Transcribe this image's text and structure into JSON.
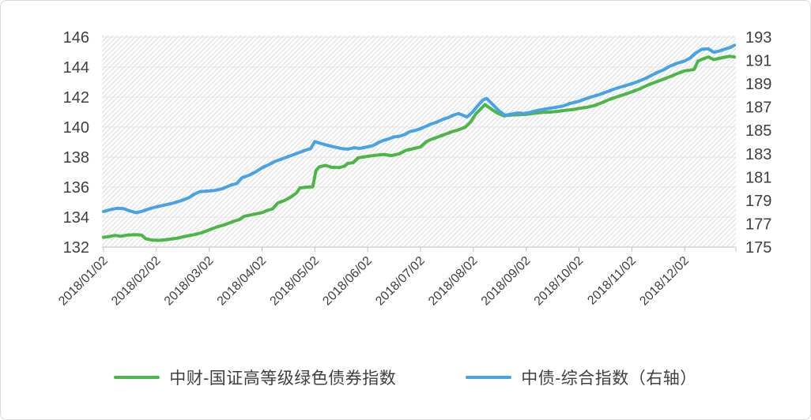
{
  "chart_data": {
    "type": "line",
    "title": "",
    "legend_position": "bottom",
    "grid": "horizontal",
    "plot_background": "diagonal-hatch",
    "x_unit": "month_index (0 = 2018/01/02 tick, 11 = 2018/12/02 tick, daily data through end of Dec 2018)",
    "x_tick_labels": [
      "2018/01/02",
      "2018/02/02",
      "2018/03/02",
      "2018/04/02",
      "2018/05/02",
      "2018/06/02",
      "2018/07/02",
      "2018/08/02",
      "2018/09/02",
      "2018/10/02",
      "2018/11/02",
      "2018/12/02"
    ],
    "left_axis": {
      "min": 132,
      "max": 146,
      "ticks": [
        146,
        144,
        142,
        140,
        138,
        136,
        134,
        132
      ]
    },
    "right_axis": {
      "min": 175,
      "max": 193,
      "ticks": [
        193,
        191,
        189,
        187,
        185,
        183,
        181,
        179,
        177,
        175
      ]
    },
    "series": [
      {
        "name": "中财-国证高等级绿色债券指数",
        "axis": "left",
        "color": "#4cb648",
        "points": [
          [
            0.0,
            132.65
          ],
          [
            0.1,
            132.7
          ],
          [
            0.22,
            132.78
          ],
          [
            0.32,
            132.72
          ],
          [
            0.45,
            132.8
          ],
          [
            0.6,
            132.83
          ],
          [
            0.72,
            132.8
          ],
          [
            0.8,
            132.55
          ],
          [
            0.92,
            132.47
          ],
          [
            1.05,
            132.45
          ],
          [
            1.2,
            132.5
          ],
          [
            1.4,
            132.6
          ],
          [
            1.55,
            132.72
          ],
          [
            1.7,
            132.82
          ],
          [
            1.85,
            132.95
          ],
          [
            2.0,
            133.15
          ],
          [
            2.15,
            133.35
          ],
          [
            2.3,
            133.5
          ],
          [
            2.45,
            133.7
          ],
          [
            2.58,
            133.85
          ],
          [
            2.66,
            134.05
          ],
          [
            2.8,
            134.15
          ],
          [
            3.0,
            134.3
          ],
          [
            3.1,
            134.45
          ],
          [
            3.2,
            134.55
          ],
          [
            3.3,
            134.95
          ],
          [
            3.42,
            135.1
          ],
          [
            3.55,
            135.35
          ],
          [
            3.65,
            135.6
          ],
          [
            3.72,
            135.95
          ],
          [
            3.85,
            136.0
          ],
          [
            3.96,
            136.02
          ],
          [
            4.02,
            137.1
          ],
          [
            4.08,
            137.35
          ],
          [
            4.2,
            137.45
          ],
          [
            4.32,
            137.32
          ],
          [
            4.45,
            137.3
          ],
          [
            4.55,
            137.38
          ],
          [
            4.62,
            137.58
          ],
          [
            4.72,
            137.62
          ],
          [
            4.82,
            137.95
          ],
          [
            5.0,
            138.05
          ],
          [
            5.15,
            138.12
          ],
          [
            5.3,
            138.18
          ],
          [
            5.45,
            138.1
          ],
          [
            5.6,
            138.22
          ],
          [
            5.72,
            138.45
          ],
          [
            5.85,
            138.55
          ],
          [
            6.0,
            138.68
          ],
          [
            6.1,
            139.0
          ],
          [
            6.18,
            139.15
          ],
          [
            6.3,
            139.3
          ],
          [
            6.45,
            139.5
          ],
          [
            6.6,
            139.7
          ],
          [
            6.72,
            139.82
          ],
          [
            6.85,
            140.0
          ],
          [
            6.95,
            140.35
          ],
          [
            7.05,
            140.9
          ],
          [
            7.15,
            141.25
          ],
          [
            7.22,
            141.5
          ],
          [
            7.32,
            141.25
          ],
          [
            7.45,
            140.95
          ],
          [
            7.58,
            140.75
          ],
          [
            7.7,
            140.8
          ],
          [
            7.85,
            140.82
          ],
          [
            8.0,
            140.85
          ],
          [
            8.15,
            140.92
          ],
          [
            8.3,
            140.98
          ],
          [
            8.45,
            141.0
          ],
          [
            8.6,
            141.05
          ],
          [
            8.75,
            141.12
          ],
          [
            8.9,
            141.18
          ],
          [
            9.0,
            141.25
          ],
          [
            9.15,
            141.32
          ],
          [
            9.3,
            141.45
          ],
          [
            9.45,
            141.65
          ],
          [
            9.6,
            141.88
          ],
          [
            9.75,
            142.05
          ],
          [
            9.88,
            142.2
          ],
          [
            10.0,
            142.35
          ],
          [
            10.15,
            142.55
          ],
          [
            10.3,
            142.8
          ],
          [
            10.45,
            143.0
          ],
          [
            10.6,
            143.2
          ],
          [
            10.75,
            143.4
          ],
          [
            10.88,
            143.6
          ],
          [
            11.0,
            143.75
          ],
          [
            11.1,
            143.8
          ],
          [
            11.18,
            143.85
          ],
          [
            11.25,
            144.4
          ],
          [
            11.35,
            144.55
          ],
          [
            11.45,
            144.68
          ],
          [
            11.55,
            144.5
          ],
          [
            11.65,
            144.58
          ],
          [
            11.75,
            144.65
          ],
          [
            11.85,
            144.72
          ],
          [
            11.94,
            144.68
          ]
        ]
      },
      {
        "name": "中债-综合指数（右轴）",
        "axis": "right",
        "color": "#47a3e3",
        "points": [
          [
            0.0,
            178.05
          ],
          [
            0.12,
            178.2
          ],
          [
            0.25,
            178.32
          ],
          [
            0.38,
            178.3
          ],
          [
            0.5,
            178.1
          ],
          [
            0.62,
            177.95
          ],
          [
            0.75,
            178.1
          ],
          [
            0.88,
            178.3
          ],
          [
            1.0,
            178.45
          ],
          [
            1.15,
            178.6
          ],
          [
            1.3,
            178.75
          ],
          [
            1.45,
            178.95
          ],
          [
            1.6,
            179.2
          ],
          [
            1.72,
            179.55
          ],
          [
            1.82,
            179.75
          ],
          [
            1.95,
            179.8
          ],
          [
            2.1,
            179.85
          ],
          [
            2.25,
            180.0
          ],
          [
            2.4,
            180.3
          ],
          [
            2.52,
            180.45
          ],
          [
            2.62,
            180.95
          ],
          [
            2.75,
            181.15
          ],
          [
            2.88,
            181.45
          ],
          [
            3.0,
            181.8
          ],
          [
            3.12,
            182.05
          ],
          [
            3.25,
            182.35
          ],
          [
            3.4,
            182.6
          ],
          [
            3.55,
            182.85
          ],
          [
            3.7,
            183.1
          ],
          [
            3.82,
            183.3
          ],
          [
            3.92,
            183.45
          ],
          [
            4.0,
            184.05
          ],
          [
            4.1,
            183.9
          ],
          [
            4.22,
            183.75
          ],
          [
            4.35,
            183.6
          ],
          [
            4.5,
            183.45
          ],
          [
            4.62,
            183.4
          ],
          [
            4.75,
            183.52
          ],
          [
            4.85,
            183.45
          ],
          [
            5.0,
            183.6
          ],
          [
            5.1,
            183.7
          ],
          [
            5.2,
            183.95
          ],
          [
            5.3,
            184.15
          ],
          [
            5.4,
            184.28
          ],
          [
            5.5,
            184.45
          ],
          [
            5.6,
            184.5
          ],
          [
            5.7,
            184.65
          ],
          [
            5.8,
            184.9
          ],
          [
            5.9,
            185.0
          ],
          [
            6.0,
            185.15
          ],
          [
            6.1,
            185.35
          ],
          [
            6.2,
            185.55
          ],
          [
            6.3,
            185.7
          ],
          [
            6.42,
            185.95
          ],
          [
            6.52,
            186.1
          ],
          [
            6.62,
            186.3
          ],
          [
            6.72,
            186.45
          ],
          [
            6.8,
            186.3
          ],
          [
            6.88,
            186.15
          ],
          [
            6.98,
            186.55
          ],
          [
            7.08,
            187.1
          ],
          [
            7.18,
            187.6
          ],
          [
            7.25,
            187.75
          ],
          [
            7.35,
            187.3
          ],
          [
            7.48,
            186.7
          ],
          [
            7.6,
            186.3
          ],
          [
            7.72,
            186.4
          ],
          [
            7.85,
            186.5
          ],
          [
            7.95,
            186.45
          ],
          [
            8.08,
            186.55
          ],
          [
            8.2,
            186.7
          ],
          [
            8.32,
            186.8
          ],
          [
            8.45,
            186.9
          ],
          [
            8.58,
            187.0
          ],
          [
            8.7,
            187.1
          ],
          [
            8.82,
            187.3
          ],
          [
            9.0,
            187.5
          ],
          [
            9.12,
            187.7
          ],
          [
            9.25,
            187.9
          ],
          [
            9.4,
            188.1
          ],
          [
            9.55,
            188.35
          ],
          [
            9.7,
            188.6
          ],
          [
            9.85,
            188.8
          ],
          [
            10.0,
            189.0
          ],
          [
            10.15,
            189.25
          ],
          [
            10.3,
            189.55
          ],
          [
            10.45,
            189.9
          ],
          [
            10.6,
            190.2
          ],
          [
            10.72,
            190.5
          ],
          [
            10.85,
            190.75
          ],
          [
            11.0,
            190.95
          ],
          [
            11.1,
            191.2
          ],
          [
            11.2,
            191.6
          ],
          [
            11.32,
            191.95
          ],
          [
            11.45,
            192.0
          ],
          [
            11.55,
            191.7
          ],
          [
            11.65,
            191.8
          ],
          [
            11.78,
            192.0
          ],
          [
            11.88,
            192.15
          ],
          [
            11.94,
            192.3
          ]
        ]
      }
    ]
  },
  "legend": {
    "items": [
      {
        "label": "中财-国证高等级绿色债券指数",
        "color": "#4cb648"
      },
      {
        "label": "中债-综合指数（右轴）",
        "color": "#47a3e3"
      }
    ]
  },
  "colors": {
    "green_series": "#4cb648",
    "blue_series": "#47a3e3",
    "axis_text": "#3f3f3f",
    "axis_line": "#bfbfbf",
    "gridline": "#e4e4e4",
    "hatch_line": "#dcdcdc",
    "border": "#d8d8d8"
  }
}
